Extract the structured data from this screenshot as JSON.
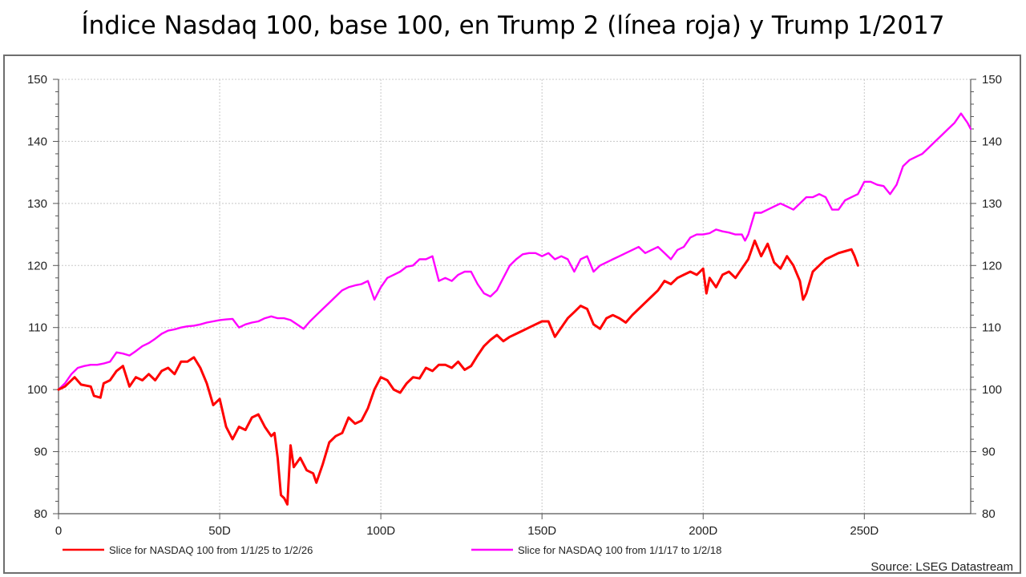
{
  "header": {
    "title": "Índice Nasdaq 100, base 100, en Trump 2 (línea roja) y Trump 1/2017"
  },
  "source": "Source: LSEG Datastream",
  "chart_data": {
    "type": "line",
    "title": "Índice Nasdaq 100, base 100, en Trump 2 (línea roja) y Trump 1/2017",
    "xlabel": "",
    "ylabel": "",
    "xlim": [
      0,
      283
    ],
    "ylim": [
      80,
      150
    ],
    "x_ticks": [
      0,
      50,
      100,
      150,
      200,
      250
    ],
    "x_tick_labels": [
      "0",
      "50D",
      "100D",
      "150D",
      "200D",
      "250D"
    ],
    "y_ticks": [
      80,
      90,
      100,
      110,
      120,
      130,
      140,
      150
    ],
    "y_tick_labels": [
      "80",
      "90",
      "100",
      "110",
      "120",
      "130",
      "140",
      "150"
    ],
    "right_axis": true,
    "grid": "dotted",
    "legend_position": "bottom",
    "series": [
      {
        "name": "Slice for NASDAQ 100 from 1/1/25 to 1/2/26",
        "color": "#ff0000",
        "points": [
          [
            0,
            100
          ],
          [
            2,
            100.5
          ],
          [
            5,
            102
          ],
          [
            7,
            100.8
          ],
          [
            10,
            100.5
          ],
          [
            11,
            99
          ],
          [
            13,
            98.7
          ],
          [
            14,
            101
          ],
          [
            16,
            101.5
          ],
          [
            18,
            103
          ],
          [
            20,
            103.8
          ],
          [
            22,
            100.5
          ],
          [
            24,
            102
          ],
          [
            26,
            101.5
          ],
          [
            28,
            102.5
          ],
          [
            30,
            101.5
          ],
          [
            32,
            103
          ],
          [
            34,
            103.5
          ],
          [
            36,
            102.5
          ],
          [
            38,
            104.5
          ],
          [
            40,
            104.5
          ],
          [
            42,
            105.2
          ],
          [
            44,
            103.5
          ],
          [
            46,
            101
          ],
          [
            48,
            97.5
          ],
          [
            50,
            98.5
          ],
          [
            52,
            94
          ],
          [
            54,
            92
          ],
          [
            56,
            94
          ],
          [
            58,
            93.5
          ],
          [
            60,
            95.5
          ],
          [
            62,
            96
          ],
          [
            64,
            94
          ],
          [
            66,
            92.5
          ],
          [
            67,
            93
          ],
          [
            68,
            89
          ],
          [
            69,
            83
          ],
          [
            70,
            82.5
          ],
          [
            71,
            81.5
          ],
          [
            72,
            91
          ],
          [
            73,
            87.5
          ],
          [
            75,
            89
          ],
          [
            77,
            87
          ],
          [
            79,
            86.5
          ],
          [
            80,
            85
          ],
          [
            82,
            88
          ],
          [
            84,
            91.5
          ],
          [
            86,
            92.5
          ],
          [
            88,
            93
          ],
          [
            90,
            95.5
          ],
          [
            92,
            94.5
          ],
          [
            94,
            95
          ],
          [
            96,
            97
          ],
          [
            98,
            100
          ],
          [
            100,
            102
          ],
          [
            102,
            101.5
          ],
          [
            104,
            100
          ],
          [
            106,
            99.5
          ],
          [
            108,
            101
          ],
          [
            110,
            102
          ],
          [
            112,
            101.8
          ],
          [
            114,
            103.5
          ],
          [
            116,
            103
          ],
          [
            118,
            104
          ],
          [
            120,
            104
          ],
          [
            122,
            103.5
          ],
          [
            124,
            104.5
          ],
          [
            126,
            103.2
          ],
          [
            128,
            103.8
          ],
          [
            130,
            105.5
          ],
          [
            132,
            107
          ],
          [
            134,
            108
          ],
          [
            136,
            108.8
          ],
          [
            138,
            107.8
          ],
          [
            140,
            108.5
          ],
          [
            142,
            109
          ],
          [
            144,
            109.5
          ],
          [
            146,
            110
          ],
          [
            148,
            110.5
          ],
          [
            150,
            111
          ],
          [
            152,
            111
          ],
          [
            154,
            108.5
          ],
          [
            156,
            110
          ],
          [
            158,
            111.5
          ],
          [
            160,
            112.5
          ],
          [
            162,
            113.5
          ],
          [
            164,
            113
          ],
          [
            166,
            110.5
          ],
          [
            168,
            109.8
          ],
          [
            170,
            111.5
          ],
          [
            172,
            112
          ],
          [
            174,
            111.5
          ],
          [
            176,
            110.8
          ],
          [
            178,
            112
          ],
          [
            180,
            113
          ],
          [
            182,
            114
          ],
          [
            184,
            115
          ],
          [
            186,
            116
          ],
          [
            188,
            117.5
          ],
          [
            190,
            117
          ],
          [
            192,
            118
          ],
          [
            194,
            118.5
          ],
          [
            196,
            119
          ],
          [
            198,
            118.5
          ],
          [
            200,
            119.5
          ],
          [
            201,
            115.5
          ],
          [
            202,
            118
          ],
          [
            204,
            116.5
          ],
          [
            206,
            118.5
          ],
          [
            208,
            119
          ],
          [
            210,
            118
          ],
          [
            212,
            119.5
          ],
          [
            214,
            121
          ],
          [
            216,
            124
          ],
          [
            218,
            121.5
          ],
          [
            220,
            123.5
          ],
          [
            222,
            120.5
          ],
          [
            224,
            119.5
          ],
          [
            226,
            121.5
          ],
          [
            228,
            120
          ],
          [
            230,
            117.5
          ],
          [
            231,
            114.5
          ],
          [
            232,
            115.5
          ],
          [
            234,
            119
          ],
          [
            236,
            120
          ],
          [
            238,
            121
          ],
          [
            240,
            121.5
          ],
          [
            242,
            122
          ],
          [
            244,
            122.3
          ],
          [
            246,
            122.6
          ],
          [
            247,
            121.5
          ],
          [
            248,
            120
          ]
        ]
      },
      {
        "name": "Slice for NASDAQ 100 from 1/1/17 to 1/2/18",
        "color": "#ff00ff",
        "points": [
          [
            0,
            100
          ],
          [
            2,
            101
          ],
          [
            4,
            102.5
          ],
          [
            6,
            103.5
          ],
          [
            8,
            103.8
          ],
          [
            10,
            104
          ],
          [
            12,
            104
          ],
          [
            14,
            104.2
          ],
          [
            16,
            104.5
          ],
          [
            18,
            106
          ],
          [
            20,
            105.8
          ],
          [
            22,
            105.5
          ],
          [
            24,
            106.2
          ],
          [
            26,
            107
          ],
          [
            28,
            107.5
          ],
          [
            30,
            108.2
          ],
          [
            32,
            109
          ],
          [
            34,
            109.5
          ],
          [
            36,
            109.7
          ],
          [
            38,
            110
          ],
          [
            40,
            110.2
          ],
          [
            42,
            110.3
          ],
          [
            44,
            110.5
          ],
          [
            46,
            110.8
          ],
          [
            48,
            111
          ],
          [
            50,
            111.2
          ],
          [
            52,
            111.3
          ],
          [
            54,
            111.4
          ],
          [
            56,
            110
          ],
          [
            58,
            110.5
          ],
          [
            60,
            110.8
          ],
          [
            62,
            111
          ],
          [
            64,
            111.5
          ],
          [
            66,
            111.8
          ],
          [
            68,
            111.5
          ],
          [
            70,
            111.5
          ],
          [
            72,
            111.2
          ],
          [
            74,
            110.5
          ],
          [
            76,
            109.8
          ],
          [
            78,
            111
          ],
          [
            80,
            112
          ],
          [
            82,
            113
          ],
          [
            84,
            114
          ],
          [
            86,
            115
          ],
          [
            88,
            116
          ],
          [
            90,
            116.5
          ],
          [
            92,
            116.8
          ],
          [
            94,
            117
          ],
          [
            96,
            117.5
          ],
          [
            98,
            114.5
          ],
          [
            100,
            116.5
          ],
          [
            102,
            118
          ],
          [
            104,
            118.5
          ],
          [
            106,
            119
          ],
          [
            108,
            119.8
          ],
          [
            110,
            120
          ],
          [
            112,
            121
          ],
          [
            114,
            121
          ],
          [
            116,
            121.5
          ],
          [
            118,
            117.5
          ],
          [
            120,
            118
          ],
          [
            122,
            117.5
          ],
          [
            124,
            118.5
          ],
          [
            126,
            119
          ],
          [
            128,
            119
          ],
          [
            130,
            117
          ],
          [
            132,
            115.5
          ],
          [
            134,
            115
          ],
          [
            136,
            116
          ],
          [
            138,
            118
          ],
          [
            140,
            120
          ],
          [
            142,
            121
          ],
          [
            144,
            121.8
          ],
          [
            146,
            122
          ],
          [
            148,
            122
          ],
          [
            150,
            121.5
          ],
          [
            152,
            122
          ],
          [
            154,
            121
          ],
          [
            156,
            121.5
          ],
          [
            158,
            121
          ],
          [
            160,
            119
          ],
          [
            162,
            121
          ],
          [
            164,
            121.5
          ],
          [
            166,
            119
          ],
          [
            168,
            120
          ],
          [
            170,
            120.5
          ],
          [
            172,
            121
          ],
          [
            174,
            121.5
          ],
          [
            176,
            122
          ],
          [
            178,
            122.5
          ],
          [
            180,
            123
          ],
          [
            182,
            122
          ],
          [
            184,
            122.5
          ],
          [
            186,
            123
          ],
          [
            188,
            122
          ],
          [
            190,
            121
          ],
          [
            192,
            122.5
          ],
          [
            194,
            123
          ],
          [
            196,
            124.5
          ],
          [
            198,
            125
          ],
          [
            200,
            125
          ],
          [
            202,
            125.2
          ],
          [
            204,
            125.8
          ],
          [
            206,
            125.5
          ],
          [
            208,
            125.3
          ],
          [
            210,
            125
          ],
          [
            212,
            125
          ],
          [
            213,
            124
          ],
          [
            214,
            125
          ],
          [
            216,
            128.5
          ],
          [
            218,
            128.5
          ],
          [
            220,
            129
          ],
          [
            222,
            129.5
          ],
          [
            224,
            130
          ],
          [
            226,
            129.5
          ],
          [
            228,
            129
          ],
          [
            230,
            130
          ],
          [
            232,
            131
          ],
          [
            234,
            131
          ],
          [
            236,
            131.5
          ],
          [
            238,
            131
          ],
          [
            240,
            129
          ],
          [
            242,
            129
          ],
          [
            244,
            130.5
          ],
          [
            246,
            131
          ],
          [
            248,
            131.5
          ],
          [
            250,
            133.5
          ],
          [
            252,
            133.5
          ],
          [
            254,
            133
          ],
          [
            256,
            132.8
          ],
          [
            258,
            131.5
          ],
          [
            260,
            133
          ],
          [
            262,
            136
          ],
          [
            264,
            137
          ],
          [
            266,
            137.5
          ],
          [
            268,
            138
          ],
          [
            270,
            139
          ],
          [
            272,
            140
          ],
          [
            274,
            141
          ],
          [
            276,
            142
          ],
          [
            278,
            143
          ],
          [
            280,
            144.5
          ],
          [
            282,
            143
          ],
          [
            283,
            142
          ]
        ]
      }
    ]
  }
}
